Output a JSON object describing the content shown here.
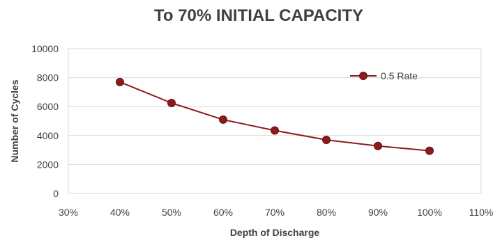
{
  "chart_data": {
    "type": "line",
    "title": "To 70% INITIAL CAPACITY",
    "xlabel": "Depth of Discharge",
    "ylabel": "Number of Cycles",
    "xlim": [
      30,
      110
    ],
    "ylim": [
      0,
      10000
    ],
    "x_ticks": [
      "30%",
      "40%",
      "50%",
      "60%",
      "70%",
      "80%",
      "90%",
      "100%",
      "110%"
    ],
    "y_ticks": [
      "0",
      "2000",
      "4000",
      "6000",
      "8000",
      "10000"
    ],
    "grid": true,
    "legend_position": "top-right",
    "series": [
      {
        "name": "0.5 Rate",
        "color": "#8b1a1a",
        "x": [
          40,
          50,
          60,
          70,
          80,
          90,
          100
        ],
        "y": [
          7700,
          6250,
          5100,
          4350,
          3700,
          3280,
          2950
        ]
      }
    ]
  }
}
